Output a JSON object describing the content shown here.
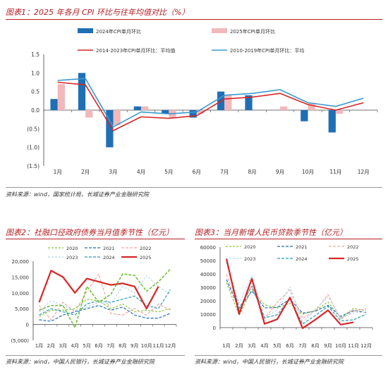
{
  "figure1": {
    "title": "图表1：2025 年各月 CPI 环比与往年均值对比（%）",
    "source": "资料来源：wind，国家统计局，长城证券产业金融研究院",
    "chart_data": {
      "type": "bar",
      "categories": [
        "1月",
        "2月",
        "3月",
        "4月",
        "5月",
        "6月",
        "7月",
        "8月",
        "9月",
        "10月",
        "11月",
        "12月"
      ],
      "ylim": [
        -1.5,
        1.5
      ],
      "yticks": [
        1.5,
        1.0,
        0.5,
        0.0,
        -0.5,
        -1.0,
        -1.5
      ],
      "ytick_labels": [
        "1.5",
        "1.0",
        "0.5",
        "0.0",
        "(0.5)",
        "(1.0)",
        "(1.5)"
      ],
      "series": [
        {
          "name": "2024年CPI单月环比",
          "kind": "bar",
          "color": "#1f6fb4",
          "values": [
            0.3,
            1.0,
            -1.0,
            0.1,
            -0.1,
            -0.2,
            0.5,
            0.4,
            null,
            -0.3,
            -0.6,
            null
          ]
        },
        {
          "name": "2025年CPI单月环比",
          "kind": "bar",
          "color": "#f2b8bb",
          "values": [
            0.7,
            -0.2,
            -0.4,
            0.1,
            -0.2,
            -0.1,
            0.4,
            null,
            0.1,
            0.2,
            -0.1,
            null
          ]
        },
        {
          "name": "2014-2023年CPI单月环比：平均值",
          "kind": "line",
          "color": "#d62728",
          "values": [
            0.75,
            0.68,
            -0.55,
            -0.18,
            -0.22,
            -0.15,
            0.3,
            0.35,
            0.45,
            0.15,
            0.0,
            0.2
          ]
        },
        {
          "name": "2010-2019年CPI单月环比：平均",
          "kind": "line",
          "color": "#3d9ad1",
          "values": [
            0.8,
            0.85,
            -0.45,
            -0.05,
            -0.1,
            -0.05,
            0.4,
            0.45,
            0.55,
            0.2,
            0.1,
            0.32
          ]
        }
      ]
    }
  },
  "figure2": {
    "title": "图表2：社融口径政府债券当月值季节性（亿元）",
    "source": "资料来源：wind，中国人民银行，长城证券产业金融研究院",
    "chart_data": {
      "type": "line",
      "categories": [
        "1月",
        "2月",
        "3月",
        "4月",
        "5月",
        "6月",
        "7月",
        "8月",
        "9月",
        "10月",
        "11月",
        "12月"
      ],
      "ylim": [
        -5000,
        20000
      ],
      "yticks": [
        20000,
        15000,
        10000,
        5000,
        0,
        -5000
      ],
      "ytick_labels": [
        "20,000",
        "15,000",
        "10,000",
        "5,000",
        "0",
        "(5,000)"
      ],
      "series": [
        {
          "name": "2020",
          "color": "#8cc63f",
          "dash": "3,2",
          "width": 1.2,
          "values": [
            2500,
            4500,
            4500,
            5000,
            8000,
            7500,
            5000,
            6500,
            4000,
            4500,
            4000,
            5000
          ]
        },
        {
          "name": "2021",
          "color": "#1f6fb4",
          "dash": "4,2",
          "width": 1.2,
          "values": [
            1500,
            1000,
            3000,
            4000,
            5000,
            6000,
            4500,
            5500,
            3000,
            2000,
            2000,
            3500
          ]
        },
        {
          "name": "2022",
          "color": "#f4a6a0",
          "dash": "4,2",
          "width": 1.2,
          "values": [
            6000,
            1500,
            7000,
            4000,
            10500,
            16000,
            3500,
            3000,
            5000,
            3000,
            6500,
            4500
          ]
        },
        {
          "name": "2023",
          "color": "#b8d9ef",
          "dash": "3,2",
          "width": 1.2,
          "values": [
            4000,
            7500,
            6000,
            4500,
            5500,
            7000,
            6500,
            12000,
            10000,
            15500,
            12000,
            9500
          ]
        },
        {
          "name": "2024",
          "color": "#2c9bb5",
          "dash": "4,2",
          "width": 1.2,
          "values": [
            3000,
            5000,
            4000,
            3000,
            6500,
            7500,
            7000,
            8000,
            9000,
            6000,
            5000,
            11000
          ]
        },
        {
          "name": "2025",
          "color": "#d62728",
          "dash": "",
          "width": 2.2,
          "values": [
            7000,
            17000,
            15000,
            10000,
            14500,
            13500,
            12500,
            13000,
            12000,
            5000,
            12000,
            null
          ]
        },
        {
          "name": "",
          "color": "#6fbf3a",
          "dash": "4,2",
          "width": 1.6,
          "values": [
            4500,
            6000,
            6000,
            -1000,
            12000,
            7000,
            9500,
            16000,
            15500,
            10500,
            13500,
            17500
          ]
        }
      ]
    }
  },
  "figure3": {
    "title": "图表3：当月新增人民币贷款季节性（亿元）",
    "source": "资料来源：wind，中国人民银行，长城证券产业金融研究院",
    "chart_data": {
      "type": "line",
      "categories": [
        "1月",
        "2月",
        "3月",
        "4月",
        "5月",
        "6月",
        "7月",
        "8月",
        "9月",
        "10月",
        "11月",
        "12月"
      ],
      "ylim": [
        0,
        60000
      ],
      "yticks": [
        60000,
        50000,
        40000,
        30000,
        20000,
        10000,
        0
      ],
      "ytick_labels": [
        "60000",
        "50000",
        "40000",
        "30000",
        "20000",
        "10000",
        "0"
      ],
      "series": [
        {
          "name": "2020",
          "color": "#8cc63f",
          "dash": "3,2",
          "width": 1.2,
          "values": [
            33500,
            9100,
            28500,
            17000,
            14800,
            18100,
            9900,
            12800,
            19000,
            6900,
            14300,
            12600
          ]
        },
        {
          "name": "2021",
          "color": "#1f6fb4",
          "dash": "4,2",
          "width": 1.2,
          "values": [
            35800,
            13600,
            27300,
            14700,
            15000,
            21200,
            10800,
            12200,
            16600,
            8300,
            12700,
            11300
          ]
        },
        {
          "name": "2022",
          "color": "#f4a6a0",
          "dash": "4,2",
          "width": 1.2,
          "values": [
            39800,
            12300,
            31300,
            6500,
            18900,
            28100,
            6800,
            12500,
            24700,
            6200,
            12100,
            14000
          ]
        },
        {
          "name": "2023",
          "color": "#b8d9ef",
          "dash": "3,2",
          "width": 1.2,
          "values": [
            49000,
            18100,
            38900,
            7200,
            13600,
            30500,
            3500,
            13600,
            23100,
            7400,
            10900,
            11700
          ]
        },
        {
          "name": "2024",
          "color": "#2c9bb5",
          "dash": "4,2",
          "width": 1.2,
          "values": [
            49200,
            14500,
            30900,
            7300,
            9500,
            21300,
            2600,
            9000,
            15900,
            5000,
            5800,
            9900
          ]
        },
        {
          "name": "2025",
          "color": "#d62728",
          "dash": "",
          "width": 2.2,
          "values": [
            51300,
            10100,
            36400,
            2800,
            6200,
            22400,
            -500,
            5900,
            12900,
            2200,
            3900,
            null
          ]
        }
      ]
    }
  }
}
